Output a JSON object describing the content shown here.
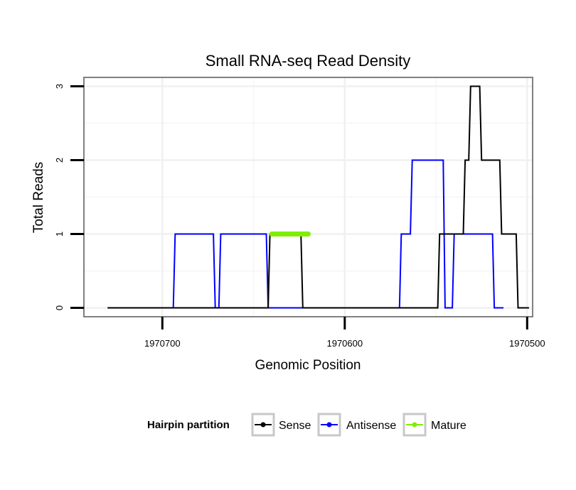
{
  "chart_data": {
    "type": "line",
    "title": "Small RNA-seq Read Density",
    "xlabel": "Genomic Position",
    "ylabel": "Total Reads",
    "x_reversed": true,
    "xlim": [
      1970743,
      1970497
    ],
    "ylim": [
      -0.12,
      3.12
    ],
    "x_ticks": [
      {
        "value": 1970700,
        "label": "1970700"
      },
      {
        "value": 1970600,
        "label": "1970600"
      },
      {
        "value": 1970500,
        "label": "1970500"
      }
    ],
    "y_ticks": [
      {
        "value": 0,
        "label": "0"
      },
      {
        "value": 1,
        "label": "1"
      },
      {
        "value": 2,
        "label": "2"
      },
      {
        "value": 3,
        "label": "3"
      }
    ],
    "grid": true,
    "legend": {
      "title": "Hairpin partition",
      "position": "bottom",
      "entries": [
        "Sense",
        "Antisense",
        "Mature"
      ]
    },
    "series": [
      {
        "name": "Antisense",
        "color": "#0000ff",
        "width": 2,
        "points": [
          [
            1970730,
            0
          ],
          [
            1970700,
            0
          ],
          [
            1970694,
            0
          ],
          [
            1970693,
            1
          ],
          [
            1970672,
            1
          ],
          [
            1970671,
            0
          ],
          [
            1970669,
            0
          ],
          [
            1970668,
            1
          ],
          [
            1970643,
            1
          ],
          [
            1970642,
            0
          ],
          [
            1970570,
            0
          ],
          [
            1970569,
            1
          ],
          [
            1970564,
            1
          ],
          [
            1970563,
            2
          ],
          [
            1970546,
            2
          ],
          [
            1970545,
            0
          ],
          [
            1970541,
            0
          ],
          [
            1970540,
            1
          ],
          [
            1970519,
            1
          ],
          [
            1970518,
            0
          ],
          [
            1970513,
            0
          ]
        ]
      },
      {
        "name": "Sense",
        "color": "#000000",
        "width": 2,
        "points": [
          [
            1970730,
            0
          ],
          [
            1970642,
            0
          ],
          [
            1970641,
            1
          ],
          [
            1970624,
            1
          ],
          [
            1970623,
            0
          ],
          [
            1970549,
            0
          ],
          [
            1970548,
            1
          ],
          [
            1970535,
            1
          ],
          [
            1970534,
            2
          ],
          [
            1970532,
            2
          ],
          [
            1970531,
            3
          ],
          [
            1970526,
            3
          ],
          [
            1970525,
            2
          ],
          [
            1970515,
            2
          ],
          [
            1970514,
            1
          ],
          [
            1970506,
            1
          ],
          [
            1970505,
            0
          ],
          [
            1970499,
            0
          ]
        ]
      },
      {
        "name": "Mature",
        "color": "#80ee00",
        "width": 7,
        "points": [
          [
            1970640,
            1
          ],
          [
            1970620,
            1
          ]
        ]
      }
    ]
  }
}
